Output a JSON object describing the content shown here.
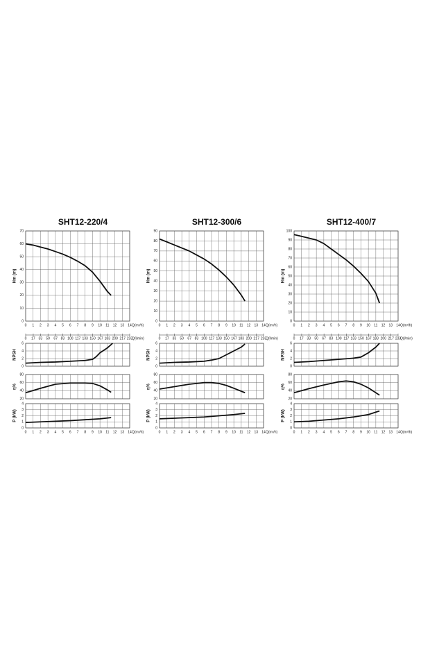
{
  "chart_data": [
    {
      "type": "line",
      "title": "SHT12-220/4",
      "ylabel": "Hm  (m)",
      "xlabel": "Q(m³/h)",
      "x2label": "Q(l/min)",
      "color": "#111111",
      "grid": true,
      "xtick_labels": true,
      "x": [
        0,
        1,
        2,
        3,
        4,
        5,
        6,
        7,
        8,
        9,
        10,
        11,
        11.5
      ],
      "values": [
        60,
        59,
        57.5,
        56,
        54,
        52,
        49.5,
        46.5,
        43,
        38,
        31,
        23,
        20
      ],
      "xlim": [
        0,
        14
      ],
      "xticks": [
        0,
        1,
        2,
        3,
        4,
        5,
        6,
        7,
        8,
        9,
        10,
        11,
        12,
        13,
        14
      ],
      "ylim": [
        0,
        70
      ],
      "yticks": [
        0,
        10,
        20,
        30,
        40,
        50,
        60,
        70
      ],
      "x2lim": [
        0,
        233
      ],
      "x2ticks": [
        0,
        17,
        33,
        50,
        67,
        83,
        100,
        117,
        133,
        150,
        167,
        183,
        200,
        217,
        233
      ]
    },
    {
      "type": "line",
      "ylabel": "NPSH",
      "color": "#111111",
      "grid": true,
      "xtick_labels": false,
      "x": [
        0,
        2,
        4,
        6,
        8,
        9,
        9.5,
        10,
        11,
        11.7
      ],
      "values": [
        0.8,
        1,
        1.1,
        1.3,
        1.5,
        1.8,
        2.5,
        3.5,
        4.8,
        6
      ],
      "xlim": [
        0,
        14
      ],
      "xticks": [
        0,
        1,
        2,
        3,
        4,
        5,
        6,
        7,
        8,
        9,
        10,
        11,
        12,
        13,
        14
      ],
      "ylim": [
        0,
        6
      ],
      "yticks": [
        0,
        2,
        4,
        6
      ]
    },
    {
      "type": "line",
      "ylabel": "η%",
      "color": "#111111",
      "grid": true,
      "xtick_labels": false,
      "x": [
        0,
        2,
        4,
        6,
        8,
        9,
        10,
        11,
        11.5
      ],
      "values": [
        35,
        46,
        56,
        59,
        59,
        58,
        52,
        42,
        36
      ],
      "xlim": [
        0,
        14
      ],
      "xticks": [
        0,
        1,
        2,
        3,
        4,
        5,
        6,
        7,
        8,
        9,
        10,
        11,
        12,
        13,
        14
      ],
      "ylim": [
        20,
        80
      ],
      "yticks": [
        20,
        40,
        60,
        80
      ]
    },
    {
      "type": "line",
      "ylabel": "P  (kW)",
      "xlabel": "Q(m³/h)",
      "color": "#111111",
      "grid": true,
      "xtick_labels": true,
      "x": [
        0,
        2,
        4,
        6,
        8,
        10,
        11.5
      ],
      "values": [
        0.9,
        1,
        1.1,
        1.2,
        1.35,
        1.5,
        1.7
      ],
      "xlim": [
        0,
        14
      ],
      "xticks": [
        0,
        1,
        2,
        3,
        4,
        5,
        6,
        7,
        8,
        9,
        10,
        11,
        12,
        13,
        14
      ],
      "ylim": [
        0,
        4
      ],
      "yticks": [
        0,
        1,
        2,
        3,
        4
      ]
    },
    {
      "type": "line",
      "title": "SHT12-300/6",
      "ylabel": "Hm  (m)",
      "xlabel": "Q(m³/h)",
      "x2label": "Q(l/min)",
      "color": "#111111",
      "grid": true,
      "xtick_labels": true,
      "x": [
        0,
        1,
        2,
        3,
        4,
        5,
        6,
        7,
        8,
        9,
        10,
        11,
        11.5
      ],
      "values": [
        82,
        79,
        76,
        73,
        70,
        66,
        62,
        57,
        51,
        44,
        36,
        26,
        20
      ],
      "xlim": [
        0,
        14
      ],
      "xticks": [
        0,
        1,
        2,
        3,
        4,
        5,
        6,
        7,
        8,
        9,
        10,
        11,
        12,
        13,
        14
      ],
      "ylim": [
        0,
        90
      ],
      "yticks": [
        0,
        10,
        20,
        30,
        40,
        50,
        60,
        70,
        80,
        90
      ],
      "x2lim": [
        0,
        233
      ],
      "x2ticks": [
        0,
        17,
        33,
        50,
        67,
        83,
        100,
        117,
        133,
        150,
        167,
        183,
        200,
        217,
        233
      ]
    },
    {
      "type": "line",
      "ylabel": "NPSH",
      "color": "#111111",
      "grid": true,
      "xtick_labels": false,
      "x": [
        0,
        2,
        4,
        6,
        7,
        8,
        9,
        10,
        11,
        11.5
      ],
      "values": [
        0.8,
        1,
        1.1,
        1.3,
        1.6,
        2,
        3,
        4,
        5,
        5.8
      ],
      "xlim": [
        0,
        14
      ],
      "xticks": [
        0,
        1,
        2,
        3,
        4,
        5,
        6,
        7,
        8,
        9,
        10,
        11,
        12,
        13,
        14
      ],
      "ylim": [
        0,
        6
      ],
      "yticks": [
        0,
        2,
        4,
        6
      ]
    },
    {
      "type": "line",
      "ylabel": "η%",
      "color": "#111111",
      "grid": true,
      "xtick_labels": false,
      "x": [
        0,
        2,
        4,
        6,
        7,
        8,
        9,
        10,
        11.5
      ],
      "values": [
        44,
        50,
        56,
        60,
        60,
        58,
        53,
        46,
        35
      ],
      "xlim": [
        0,
        14
      ],
      "xticks": [
        0,
        1,
        2,
        3,
        4,
        5,
        6,
        7,
        8,
        9,
        10,
        11,
        12,
        13,
        14
      ],
      "ylim": [
        20,
        80
      ],
      "yticks": [
        20,
        40,
        60,
        80
      ]
    },
    {
      "type": "line",
      "ylabel": "P  (kW)",
      "xlabel": "Q(m³/h)",
      "color": "#111111",
      "grid": true,
      "xtick_labels": true,
      "x": [
        0,
        2,
        4,
        6,
        8,
        10,
        11.5
      ],
      "values": [
        1.5,
        1.6,
        1.7,
        1.8,
        2,
        2.2,
        2.4
      ],
      "xlim": [
        0,
        14
      ],
      "xticks": [
        0,
        1,
        2,
        3,
        4,
        5,
        6,
        7,
        8,
        9,
        10,
        11,
        12,
        13,
        14
      ],
      "ylim": [
        0,
        4
      ],
      "yticks": [
        0,
        1,
        2,
        3,
        4
      ]
    },
    {
      "type": "line",
      "title": "SHT12-400/7",
      "ylabel": "Hm  (m)",
      "xlabel": "Q(m³/h)",
      "x2label": "Q(l/min)",
      "color": "#111111",
      "grid": true,
      "xtick_labels": true,
      "x": [
        0,
        1,
        2,
        3,
        4,
        5,
        6,
        7,
        8,
        9,
        10,
        11,
        11.5
      ],
      "values": [
        96,
        94,
        92,
        90,
        86,
        80,
        74,
        68,
        61,
        53,
        44,
        31,
        20
      ],
      "xlim": [
        0,
        14
      ],
      "xticks": [
        0,
        1,
        2,
        3,
        4,
        5,
        6,
        7,
        8,
        9,
        10,
        11,
        12,
        13,
        14
      ],
      "ylim": [
        0,
        100
      ],
      "yticks": [
        0,
        10,
        20,
        30,
        40,
        50,
        60,
        70,
        80,
        90,
        100
      ],
      "x2lim": [
        0,
        233
      ],
      "x2ticks": [
        0,
        17,
        33,
        50,
        67,
        83,
        100,
        117,
        133,
        150,
        167,
        183,
        200,
        217,
        233
      ]
    },
    {
      "type": "line",
      "ylabel": "NPSH",
      "color": "#111111",
      "grid": true,
      "xtick_labels": false,
      "x": [
        0,
        2,
        4,
        6,
        8,
        9,
        10,
        11,
        11.5
      ],
      "values": [
        1,
        1.2,
        1.5,
        1.8,
        2.1,
        2.4,
        3.5,
        5,
        6
      ],
      "xlim": [
        0,
        14
      ],
      "xticks": [
        0,
        1,
        2,
        3,
        4,
        5,
        6,
        7,
        8,
        9,
        10,
        11,
        12,
        13,
        14
      ],
      "ylim": [
        0,
        6
      ],
      "yticks": [
        0,
        2,
        4,
        6
      ]
    },
    {
      "type": "line",
      "ylabel": "η%",
      "color": "#111111",
      "grid": true,
      "xtick_labels": false,
      "x": [
        0,
        2,
        4,
        6,
        7,
        8,
        9,
        10,
        11,
        11.5
      ],
      "values": [
        35,
        45,
        54,
        62,
        64,
        62,
        56,
        47,
        35,
        29
      ],
      "xlim": [
        0,
        14
      ],
      "xticks": [
        0,
        1,
        2,
        3,
        4,
        5,
        6,
        7,
        8,
        9,
        10,
        11,
        12,
        13,
        14
      ],
      "ylim": [
        20,
        80
      ],
      "yticks": [
        20,
        40,
        60,
        80
      ]
    },
    {
      "type": "line",
      "ylabel": "P  (kW)",
      "xlabel": "Q(m³/h)",
      "color": "#111111",
      "grid": true,
      "xtick_labels": true,
      "x": [
        0,
        2,
        4,
        6,
        8,
        10,
        11.5
      ],
      "values": [
        1,
        1.1,
        1.3,
        1.5,
        1.8,
        2.2,
        2.8
      ],
      "xlim": [
        0,
        14
      ],
      "xticks": [
        0,
        1,
        2,
        3,
        4,
        5,
        6,
        7,
        8,
        9,
        10,
        11,
        12,
        13,
        14
      ],
      "ylim": [
        0,
        4
      ],
      "yticks": [
        0,
        1,
        2,
        3,
        4
      ]
    }
  ]
}
